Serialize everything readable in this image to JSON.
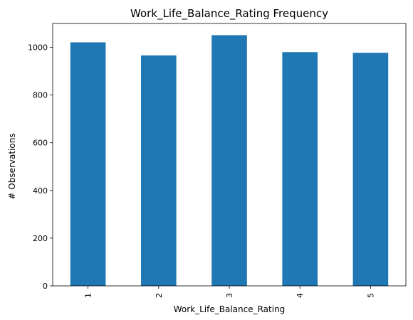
{
  "chart_data": {
    "type": "bar",
    "title": "Work_Life_Balance_Rating Frequency",
    "xlabel": "Work_Life_Balance_Rating",
    "ylabel": "# Observations",
    "categories": [
      "1",
      "2",
      "3",
      "4",
      "5"
    ],
    "values": [
      1021,
      966,
      1051,
      980,
      977
    ],
    "ylim": [
      0,
      1100
    ],
    "yticks": [
      0,
      200,
      400,
      600,
      800,
      1000
    ],
    "x_tick_rotation": 90,
    "grid": false,
    "bar_color": "#1f77b4",
    "axis_color": "#000000"
  }
}
